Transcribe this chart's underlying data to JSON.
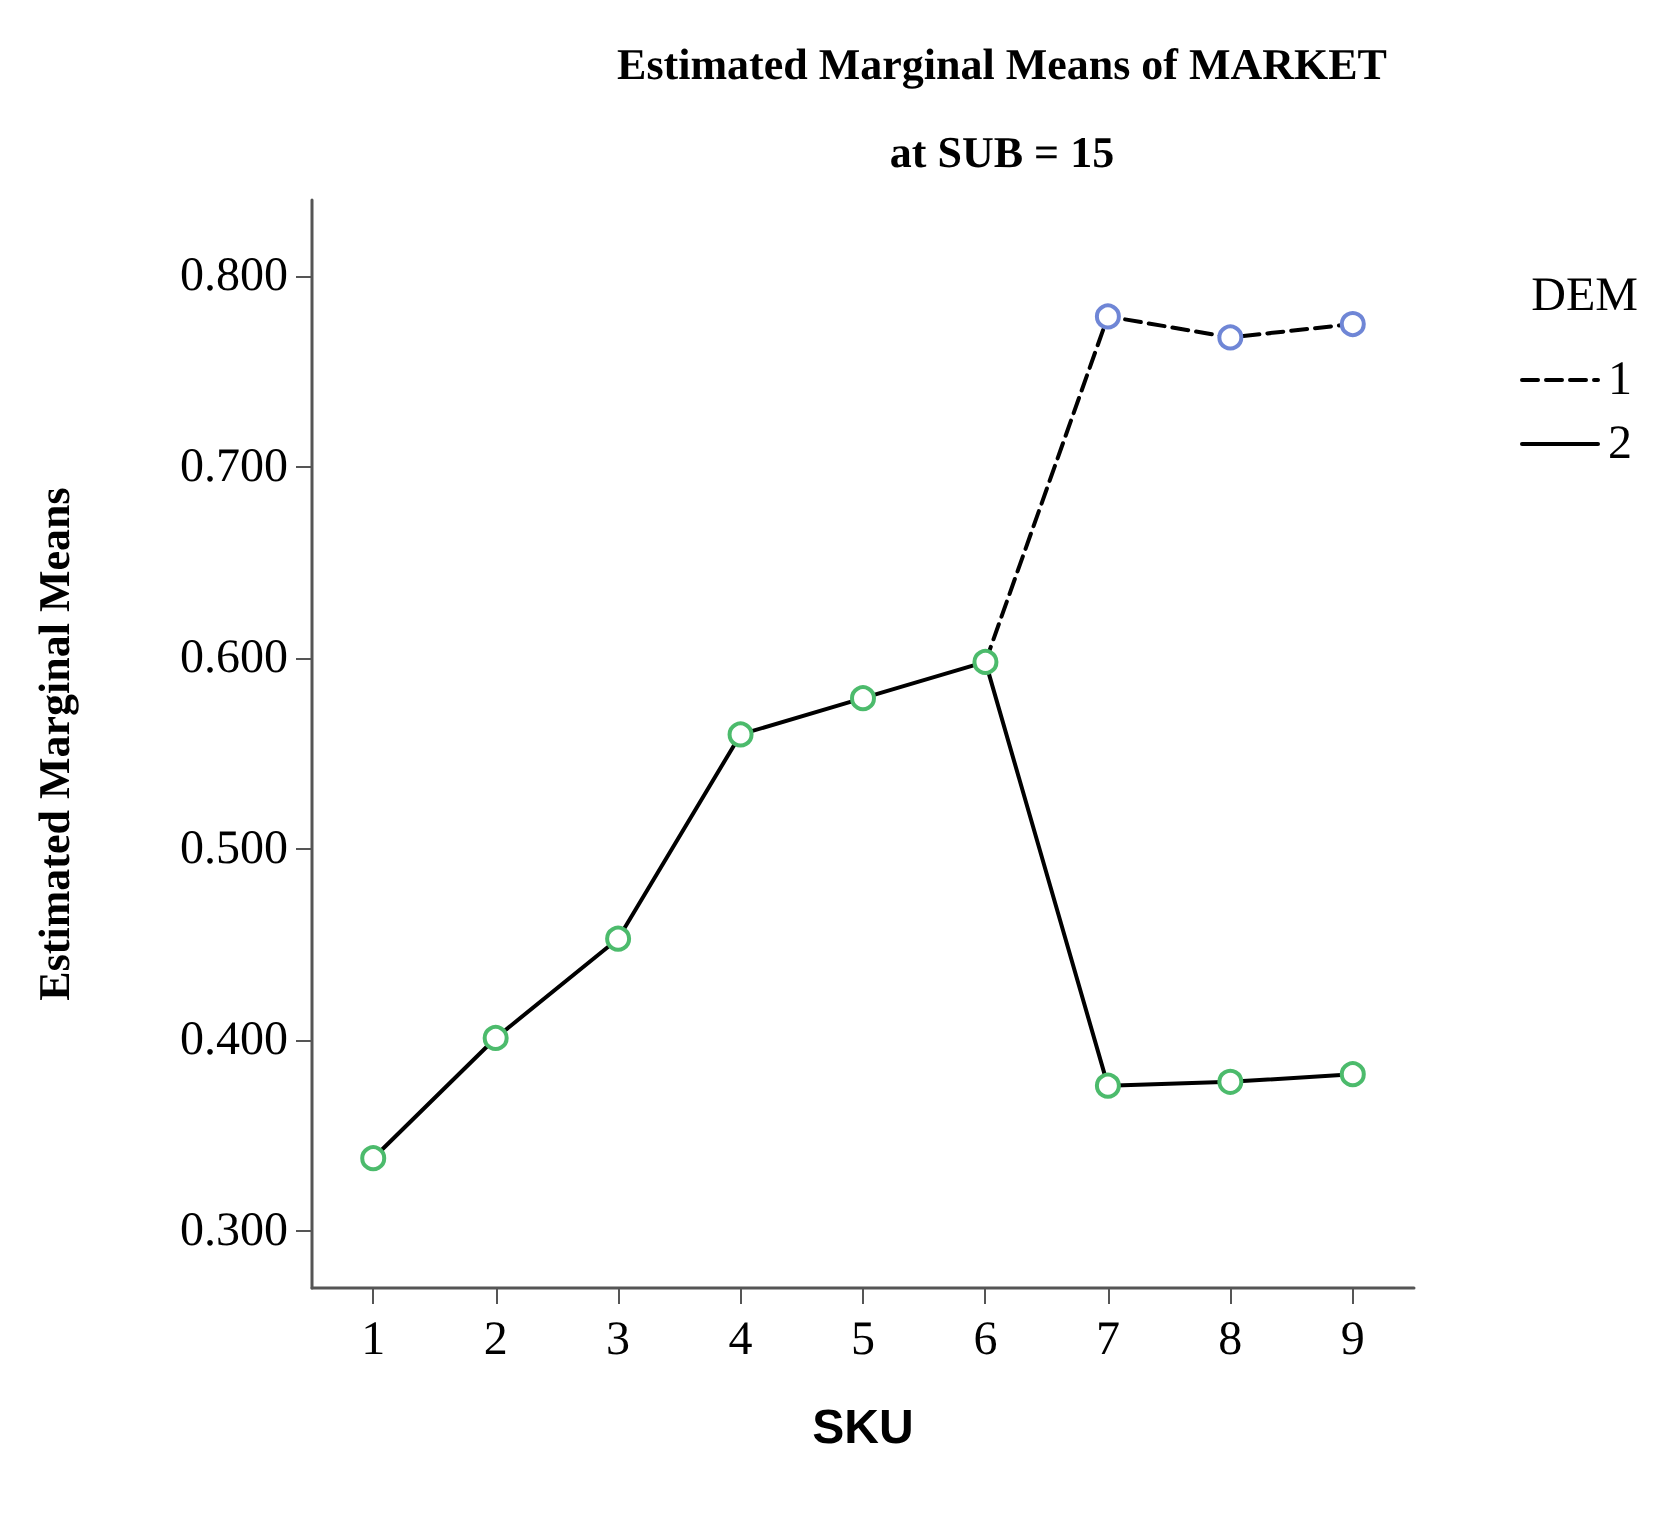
{
  "chart_data": {
    "type": "line",
    "title": "Estimated Marginal Means of MARKET",
    "subtitle": "at SUB = 15",
    "xlabel": "SKU",
    "ylabel": "Estimated Marginal Means",
    "legend_title": "DEM",
    "legend": "top right",
    "marker": "circle",
    "grid": false,
    "categories": [
      "1",
      "2",
      "3",
      "4",
      "5",
      "6",
      "7",
      "8",
      "9"
    ],
    "ylim": [
      0.27,
      0.84
    ],
    "yticks": [
      {
        "value": 0.3,
        "label": "0.300"
      },
      {
        "value": 0.4,
        "label": "0.400"
      },
      {
        "value": 0.5,
        "label": "0.500"
      },
      {
        "value": 0.6,
        "label": "0.600"
      },
      {
        "value": 0.7,
        "label": "0.700"
      },
      {
        "value": 0.8,
        "label": "0.800"
      }
    ],
    "series": [
      {
        "name": "1",
        "color": "#000000",
        "line_style": "dashed",
        "colors": [
          null,
          null,
          null,
          null,
          null,
          null,
          "#6f86d6",
          "#6f86d6",
          "#6f86d6"
        ],
        "values": [
          null,
          null,
          null,
          null,
          null,
          0.598,
          0.779,
          0.768,
          0.775
        ]
      },
      {
        "name": "2",
        "color": "#000000",
        "line_style": "solid",
        "colors": [
          "#4cbb6c",
          "#4cbb6c",
          "#4cbb6c",
          "#4cbb6c",
          "#4cbb6c",
          "#4cbb6c",
          "#4cbb6c",
          "#4cbb6c",
          "#4cbb6c"
        ],
        "values": [
          0.338,
          0.401,
          0.453,
          0.56,
          0.579,
          0.598,
          0.376,
          0.378,
          0.382
        ]
      }
    ]
  }
}
